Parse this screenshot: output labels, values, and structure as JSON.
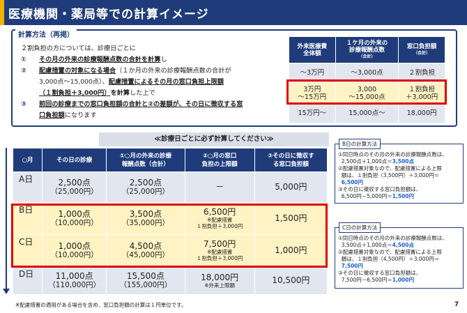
{
  "header": {
    "title": "医療機関・薬局等での計算イメージ"
  },
  "calc": {
    "label": "計算方法（再掲）",
    "intro": "２割負担の方については、診療日ごとに",
    "items": [
      {
        "num": "①",
        "l1": "その月の外来の診療報酬点数の合計を計算",
        "l1b": "し"
      },
      {
        "num": "②",
        "l1": "配慮措置の対象になる場合",
        "l1b": "（１か月の外来の診療報酬点数の合計が",
        "l2a": "3,000点～15,000点）、",
        "l2b": "配慮措置によるその月の窓口負担上限額",
        "l3a": "（１割負担＋3,000円）",
        "l3b": "を計算",
        "l3c": "した上で"
      },
      {
        "num": "③",
        "l1": "前回の診療までの窓口負担額の合計と②の差額が、その日に徴収する窓",
        "l2a": "口負担額",
        "l2b": "になります"
      }
    ]
  },
  "table1": {
    "headers": [
      {
        "main": "外来医療費",
        "sub2": "全体額",
        "small": ""
      },
      {
        "main": "１ケ月の外来の",
        "sub2": "診療報酬点数",
        "small": "（合計）"
      },
      {
        "main": "窓口負担額",
        "sub2": "",
        "small": "（合計）"
      }
    ],
    "rows": [
      [
        "～3万円",
        "～3,000点",
        "２割負担"
      ],
      [
        "3万円",
        "～15万円",
        "3,000",
        "～15,000点",
        "１割負担",
        "＋3,000円"
      ],
      [
        "15万円～",
        "15,000点～",
        "18,000円"
      ]
    ]
  },
  "banner": "≪診療日ごとに必ず計算してください≫",
  "table2": {
    "headers": [
      "○月",
      "その日の診療",
      "①○月の外来の診療報酬点数（合計）",
      "②○月の窓口負担の上限額",
      "③その日に徴収する窓口負担額"
    ],
    "headers_split": [
      [
        "○月",
        ""
      ],
      [
        "その日の診療",
        ""
      ],
      [
        "①○月の外来の診療",
        "報酬点数（合計）"
      ],
      [
        "②○月の窓口",
        "負担の上限額"
      ],
      [
        "③その日に徴収す",
        "る窓口負担額"
      ]
    ],
    "rows": {
      "a": {
        "day": "A日",
        "visit": "2,500点",
        "visit_yen": "（25,000円）",
        "total": "2,500点",
        "total_yen": "（25,000円）",
        "cap": "－",
        "cap_note1": "",
        "cap_note2": "",
        "charge": "5,000円"
      },
      "b": {
        "day": "B日",
        "visit": "1,000点",
        "visit_yen": "（10,000円）",
        "total": "3,500点",
        "total_yen": "（35,000円）",
        "cap": "6,500円",
        "cap_note1": "※配慮措置",
        "cap_note2": "１割負担＋3,000円",
        "charge": "1,500円"
      },
      "c": {
        "day": "C日",
        "visit": "1,000点",
        "visit_yen": "（10,000円）",
        "total": "4,500点",
        "total_yen": "（45,000円）",
        "cap": "7,500円",
        "cap_note1": "※配慮措置",
        "cap_note2": "１割負担＋3,000円",
        "charge": "1,000円"
      },
      "d": {
        "day": "D日",
        "visit": "11,000点",
        "visit_yen": "（110,000円）",
        "total": "15,500点",
        "total_yen": "（155,000円）",
        "cap": "18,000円",
        "cap_note1": "※外来上限額",
        "cap_note2": "",
        "charge": "10,500円"
      }
    }
  },
  "side_b": {
    "tag": "B日の計算方法",
    "l1": "①同日時点のその月の外来の診療報酬点数は、",
    "l2a": "2,500点＋1,000点＝",
    "l2b": "3,500点",
    "l3": "②配慮措置対象なので、配慮措置による上限",
    "l4": "額は、１割負担（3,500円）＋3,000円＝",
    "l5": "6,500円",
    "l6": "③その日に徴収する窓口負担額は、",
    "l7a": "6,500円－5,000円＝",
    "l7b": "1,500円"
  },
  "side_c": {
    "tag": "C日の計算方法",
    "l1": "①同日時点のその月の外来の診療報酬点数は、",
    "l2a": "3,500点＋1,000点＝",
    "l2b": "4,500点",
    "l3": "②配慮措置対象なので、配慮措置による上限",
    "l4": "額は、１割負担（4,500円）＋3,000円＝",
    "l5": "7,500円",
    "l6": "③その日に徴収する窓口負担額は、",
    "l7a": "7,500円－6,500円＝",
    "l7b": "1,000円"
  },
  "footnote": "※配慮措置の適用がある場合を含め、窓口負担額の計算は１円単位です。",
  "page_number": "7"
}
